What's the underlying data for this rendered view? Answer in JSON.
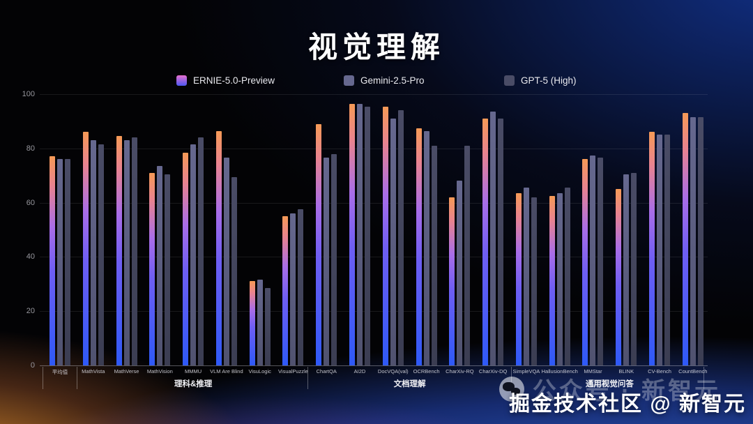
{
  "title": "视觉理解",
  "watermark": {
    "faint": "公众号 · 新智元",
    "bold": "掘金技术社区 @ 新智元"
  },
  "chart_data": {
    "type": "bar",
    "title": "视觉理解",
    "xlabel": "",
    "ylabel": "",
    "ylim": [
      0,
      100
    ],
    "yticks": [
      0,
      20,
      40,
      60,
      80,
      100
    ],
    "grid": true,
    "legend_position": "top",
    "categories": [
      "平均值",
      "MathVista",
      "MathVerse",
      "MathVision",
      "MMMU",
      "VLM Are Blind",
      "VisuLogic",
      "VisualPuzzle",
      "ChartQA",
      "AI2D",
      "DocVQA(val)",
      "OCRBench",
      "CharXiv-RQ",
      "CharXiv-DQ",
      "SimpleVQA",
      "HallusionBench",
      "MMStar",
      "BLINK",
      "CV-Bench",
      "CountBench"
    ],
    "groups": [
      {
        "label": "理科&推理",
        "from": 1,
        "to": 7
      },
      {
        "label": "文档理解",
        "from": 8,
        "to": 13
      },
      {
        "label": "通用视觉问答",
        "from": 14,
        "to": 19
      }
    ],
    "series": [
      {
        "name": "ERNIE-5.0-Preview",
        "gradient": [
          "#f69a56",
          "#e9838f",
          "#a96de8",
          "#6e5ef3",
          "#2e59f7"
        ],
        "legend_swatch": [
          "#e770cf",
          "#4b57f2"
        ],
        "values": [
          77,
          86,
          84.5,
          71,
          78.5,
          86.5,
          31,
          55,
          89,
          96.5,
          95.5,
          87.5,
          62,
          91,
          63.5,
          62.5,
          76,
          65,
          86,
          93
        ]
      },
      {
        "name": "Gemini-2.5-Pro",
        "color": "#66688f",
        "color_bottom": "#50526f",
        "values": [
          76,
          83,
          83,
          73.5,
          81.5,
          76.5,
          31.5,
          56,
          76.5,
          96.5,
          91,
          86.5,
          68,
          93.5,
          65.5,
          63.5,
          77.5,
          70.5,
          85,
          91.5
        ]
      },
      {
        "name": "GPT-5 (High)",
        "color": "#4a4c66",
        "color_bottom": "#3b3d52",
        "values": [
          76,
          81.5,
          84,
          70.5,
          84,
          69.5,
          28.5,
          57.5,
          78,
          95.5,
          94,
          81,
          81,
          91,
          62,
          65.5,
          76.5,
          71,
          85,
          91.5
        ]
      }
    ]
  }
}
